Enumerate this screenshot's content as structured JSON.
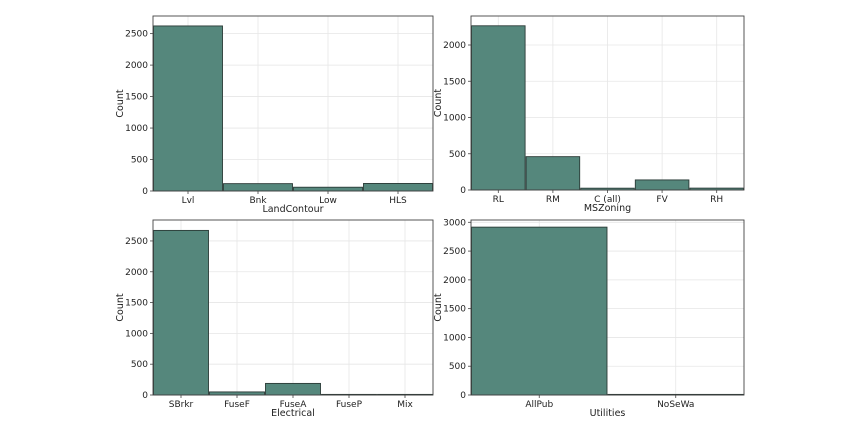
{
  "colors": {
    "bar_fill": "#55877c",
    "bar_edge": "#2b3b37",
    "grid": "#e6e6e6",
    "frame": "#444444"
  },
  "chart_data": [
    {
      "type": "bar",
      "xlabel": "LandContour",
      "ylabel": "Count",
      "categories": [
        "Lvl",
        "Bnk",
        "Low",
        "HLS"
      ],
      "values": [
        2622,
        117,
        60,
        120
      ],
      "ylim": [
        0,
        2780
      ],
      "yticks": [
        0,
        500,
        1000,
        1500,
        2000,
        2500
      ],
      "grid": true
    },
    {
      "type": "bar",
      "xlabel": "MSZoning",
      "ylabel": "Count",
      "categories": [
        "RL",
        "RM",
        "C (all)",
        "FV",
        "RH"
      ],
      "values": [
        2265,
        460,
        25,
        139,
        26
      ],
      "ylim": [
        0,
        2400
      ],
      "yticks": [
        0,
        500,
        1000,
        1500,
        2000
      ],
      "grid": true
    },
    {
      "type": "bar",
      "xlabel": "Electrical",
      "ylabel": "Count",
      "categories": [
        "SBrkr",
        "FuseF",
        "FuseA",
        "FuseP",
        "Mix"
      ],
      "values": [
        2671,
        50,
        188,
        8,
        1
      ],
      "ylim": [
        0,
        2840
      ],
      "yticks": [
        0,
        500,
        1000,
        1500,
        2000,
        2500
      ],
      "grid": true
    },
    {
      "type": "bar",
      "xlabel": "Utilities",
      "ylabel": "Count",
      "categories": [
        "AllPub",
        "NoSeWa"
      ],
      "values": [
        2916,
        1
      ],
      "ylim": [
        0,
        3040
      ],
      "yticks": [
        0,
        500,
        1000,
        1500,
        2000,
        2500,
        3000
      ],
      "grid": true
    }
  ]
}
